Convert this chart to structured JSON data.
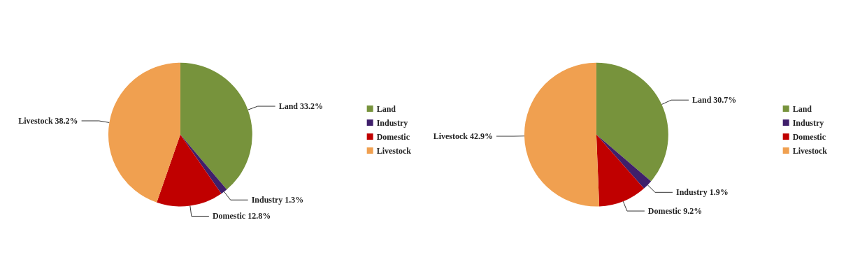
{
  "chart_data": [
    {
      "type": "pie",
      "categories": [
        "Land",
        "Industry",
        "Domestic",
        "Livestock"
      ],
      "values": [
        33.2,
        1.3,
        12.8,
        38.2
      ],
      "value_labels": [
        "33.2%",
        "1.3%",
        "12.8%",
        "38.2%"
      ],
      "colors": [
        "#77933c",
        "#3f1f6b",
        "#c00000",
        "#f0a050"
      ],
      "legend": "right"
    },
    {
      "type": "pie",
      "categories": [
        "Land",
        "Industry",
        "Domestic",
        "Livestock"
      ],
      "values": [
        30.7,
        1.9,
        9.2,
        42.9
      ],
      "value_labels": [
        "30.7%",
        "1.9%",
        "9.2%",
        "42.9%"
      ],
      "colors": [
        "#77933c",
        "#3f1f6b",
        "#c00000",
        "#f0a050"
      ],
      "legend": "right"
    }
  ]
}
